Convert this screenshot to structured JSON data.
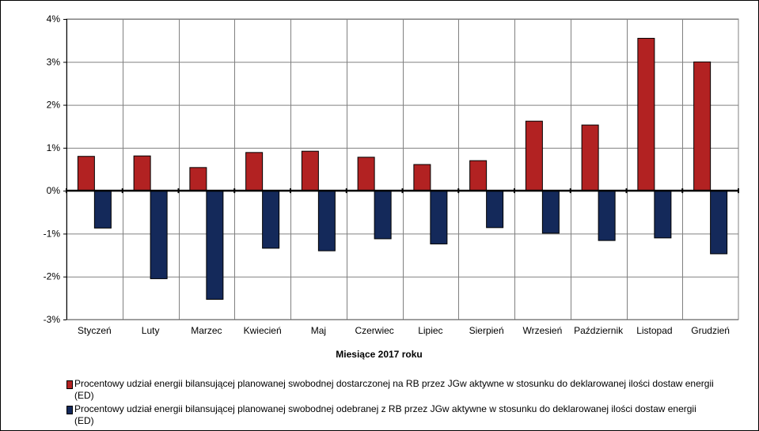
{
  "chart_data": {
    "type": "bar",
    "title": "",
    "xlabel": "Miesiące 2017  roku",
    "ylabel": "",
    "ylim": [
      -3,
      4
    ],
    "yticks": [
      4,
      3,
      2,
      1,
      0,
      -1,
      -2,
      -3
    ],
    "ytick_labels": [
      "4%",
      "3%",
      "2%",
      "1%",
      "0%",
      "-1%",
      "-2%",
      "-3%"
    ],
    "grid": true,
    "legend_position": "bottom",
    "categories": [
      "Styczeń",
      "Luty",
      "Marzec",
      "Kwiecień",
      "Maj",
      "Czerwiec",
      "Lipiec",
      "Sierpień",
      "Wrzesień",
      "Październik",
      "Listopad",
      "Grudzień"
    ],
    "series": [
      {
        "name": "Procentowy udział energii bilansującej planowanej swobodnej dostarczonej na RB przez JGw aktywne w stosunku do deklarowanej ilości dostaw energii (ED)",
        "color": "#b22222",
        "values": [
          0.8,
          0.81,
          0.54,
          0.89,
          0.92,
          0.78,
          0.61,
          0.7,
          1.62,
          1.53,
          3.55,
          3.0
        ]
      },
      {
        "name": "Procentowy udział energii bilansującej planowanej swobodnej odebranej z RB przez JGw aktywne w stosunku do deklarowanej ilości dostaw energii (ED)",
        "color": "#14295a",
        "values": [
          -0.87,
          -2.05,
          -2.53,
          -1.34,
          -1.4,
          -1.12,
          -1.24,
          -0.86,
          -0.99,
          -1.16,
          -1.1,
          -1.47
        ]
      }
    ]
  }
}
